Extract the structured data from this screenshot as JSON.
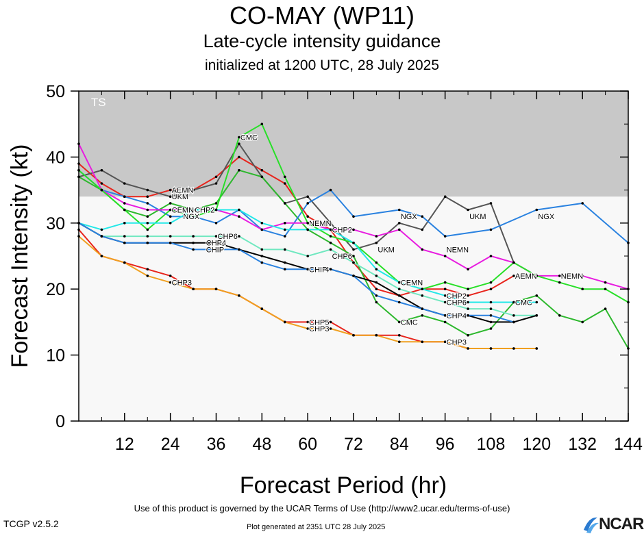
{
  "chart_data": {
    "type": "line",
    "title": "CO-MAY (WP11)",
    "subtitle": "Late-cycle intensity guidance",
    "subtitle2": "initialized at 1200 UTC, 28 July 2025",
    "xlabel": "Forecast Period (hr)",
    "ylabel": "Forecast Intensity (kt)",
    "xlim": [
      0,
      144
    ],
    "ylim": [
      0,
      50
    ],
    "xticks": [
      12,
      24,
      36,
      48,
      60,
      72,
      84,
      96,
      108,
      120,
      132,
      144
    ],
    "yticks": [
      0,
      10,
      20,
      30,
      40,
      50
    ],
    "bands": [
      {
        "label": "TS",
        "from": 34,
        "to": 50,
        "color": "#c8c8c8"
      },
      {
        "label": "",
        "from": 0,
        "to": 34,
        "color": "#f8f8f8"
      }
    ],
    "series": [
      {
        "name": "AEMN",
        "color": "#e8241c",
        "label_at": [
          [
            24,
            35
          ],
          [
            114,
            22
          ]
        ],
        "points": [
          [
            0,
            39
          ],
          [
            6,
            36
          ],
          [
            12,
            34
          ],
          [
            18,
            34
          ],
          [
            24,
            35
          ],
          [
            30,
            35
          ],
          [
            36,
            37
          ],
          [
            42,
            40
          ],
          [
            48,
            38
          ],
          [
            54,
            36
          ],
          [
            60,
            31
          ],
          [
            66,
            29
          ],
          [
            72,
            24
          ],
          [
            78,
            20
          ],
          [
            84,
            19
          ],
          [
            90,
            20
          ],
          [
            96,
            20
          ],
          [
            102,
            19
          ],
          [
            108,
            20
          ],
          [
            114,
            22
          ]
        ]
      },
      {
        "name": "UKM",
        "color": "#555555",
        "label_at": [
          [
            24,
            34
          ],
          [
            78,
            26
          ],
          [
            102,
            31
          ]
        ],
        "points": [
          [
            0,
            37
          ],
          [
            6,
            38
          ],
          [
            12,
            36
          ],
          [
            18,
            35
          ],
          [
            24,
            34
          ],
          [
            30,
            35
          ],
          [
            36,
            36
          ],
          [
            42,
            42
          ],
          [
            48,
            37
          ],
          [
            54,
            33
          ],
          [
            60,
            34
          ],
          [
            66,
            30
          ],
          [
            72,
            26
          ],
          [
            78,
            27
          ],
          [
            84,
            30
          ],
          [
            90,
            29
          ],
          [
            96,
            34
          ],
          [
            102,
            32
          ],
          [
            108,
            33
          ],
          [
            114,
            24
          ]
        ]
      },
      {
        "name": "CMC",
        "color": "#2db82d",
        "label_at": [
          [
            42,
            43
          ],
          [
            84,
            15
          ],
          [
            114,
            18
          ]
        ],
        "points": [
          [
            0,
            37
          ],
          [
            6,
            35
          ],
          [
            12,
            32
          ],
          [
            18,
            31
          ],
          [
            24,
            33
          ],
          [
            30,
            32
          ],
          [
            36,
            33
          ],
          [
            42,
            38
          ],
          [
            48,
            37
          ],
          [
            54,
            33
          ],
          [
            60,
            29
          ],
          [
            66,
            27
          ],
          [
            72,
            25
          ],
          [
            78,
            18
          ],
          [
            84,
            15
          ],
          [
            90,
            16
          ],
          [
            96,
            15
          ],
          [
            102,
            13
          ],
          [
            108,
            14
          ],
          [
            114,
            18
          ],
          [
            120,
            19
          ],
          [
            126,
            16
          ],
          [
            132,
            15
          ],
          [
            138,
            17
          ],
          [
            144,
            11
          ]
        ]
      },
      {
        "name": "NGX",
        "color": "#2a82e0",
        "label_at": [
          [
            27,
            31
          ],
          [
            84,
            31
          ],
          [
            120,
            31
          ]
        ],
        "points": [
          [
            0,
            38
          ],
          [
            6,
            35
          ],
          [
            12,
            34
          ],
          [
            18,
            33
          ],
          [
            24,
            31
          ],
          [
            30,
            31
          ],
          [
            36,
            30
          ],
          [
            42,
            32
          ],
          [
            48,
            29
          ],
          [
            54,
            28
          ],
          [
            60,
            33
          ],
          [
            66,
            35
          ],
          [
            72,
            31
          ],
          [
            84,
            32
          ],
          [
            90,
            31
          ],
          [
            96,
            28
          ],
          [
            108,
            29
          ],
          [
            120,
            32
          ],
          [
            132,
            33
          ],
          [
            144,
            27
          ]
        ]
      },
      {
        "name": "NEMN",
        "color": "#e81ce0",
        "label_at": [
          [
            60,
            30
          ],
          [
            96,
            26
          ],
          [
            126,
            22
          ]
        ],
        "points": [
          [
            0,
            42
          ],
          [
            6,
            35
          ],
          [
            12,
            33
          ],
          [
            18,
            32
          ],
          [
            24,
            32
          ],
          [
            30,
            32
          ],
          [
            36,
            32
          ],
          [
            42,
            31
          ],
          [
            48,
            29
          ],
          [
            54,
            30
          ],
          [
            60,
            30
          ],
          [
            66,
            29
          ],
          [
            72,
            29
          ],
          [
            78,
            28
          ],
          [
            84,
            29
          ],
          [
            90,
            26
          ],
          [
            96,
            25
          ],
          [
            102,
            23
          ],
          [
            108,
            25
          ],
          [
            114,
            24
          ],
          [
            120,
            22
          ],
          [
            126,
            22
          ],
          [
            132,
            22
          ],
          [
            138,
            21
          ],
          [
            144,
            20
          ]
        ]
      },
      {
        "name": "CEMN",
        "color": "#28e028",
        "label_at": [
          [
            24,
            32
          ],
          [
            84,
            21
          ]
        ],
        "points": [
          [
            0,
            38
          ],
          [
            6,
            35
          ],
          [
            12,
            32
          ],
          [
            18,
            29
          ],
          [
            24,
            32
          ],
          [
            30,
            31
          ],
          [
            36,
            32
          ],
          [
            42,
            43
          ],
          [
            48,
            45
          ],
          [
            54,
            37
          ],
          [
            60,
            30
          ],
          [
            66,
            28
          ],
          [
            72,
            27
          ],
          [
            78,
            24
          ],
          [
            84,
            21
          ],
          [
            90,
            20
          ],
          [
            96,
            21
          ],
          [
            102,
            20
          ],
          [
            108,
            21
          ],
          [
            114,
            24
          ],
          [
            120,
            22
          ],
          [
            126,
            21
          ],
          [
            132,
            20
          ],
          [
            138,
            20
          ],
          [
            144,
            18
          ]
        ]
      },
      {
        "name": "CHP2",
        "color": "#22e8e8",
        "label_at": [
          [
            30,
            32
          ],
          [
            66,
            29
          ],
          [
            96,
            19
          ]
        ],
        "points": [
          [
            0,
            30
          ],
          [
            6,
            29
          ],
          [
            12,
            30
          ],
          [
            18,
            30
          ],
          [
            24,
            30
          ],
          [
            30,
            32
          ],
          [
            36,
            32
          ],
          [
            42,
            32
          ],
          [
            48,
            30
          ],
          [
            54,
            29
          ],
          [
            60,
            29
          ],
          [
            66,
            29
          ],
          [
            72,
            27
          ],
          [
            78,
            23
          ],
          [
            84,
            21
          ],
          [
            90,
            20
          ],
          [
            96,
            19
          ],
          [
            102,
            18
          ],
          [
            108,
            18
          ],
          [
            114,
            18
          ],
          [
            120,
            18
          ]
        ]
      },
      {
        "name": "CHP6",
        "color": "#70e8c0",
        "label_at": [
          [
            36,
            28
          ],
          [
            66,
            25
          ],
          [
            96,
            18
          ]
        ],
        "points": [
          [
            0,
            30
          ],
          [
            6,
            28
          ],
          [
            12,
            28
          ],
          [
            18,
            28
          ],
          [
            24,
            28
          ],
          [
            30,
            28
          ],
          [
            36,
            28
          ],
          [
            42,
            28
          ],
          [
            48,
            26
          ],
          [
            54,
            26
          ],
          [
            60,
            25
          ],
          [
            66,
            26
          ],
          [
            72,
            24
          ],
          [
            78,
            22
          ],
          [
            84,
            20
          ],
          [
            90,
            19
          ],
          [
            96,
            18
          ],
          [
            102,
            17
          ],
          [
            108,
            17
          ],
          [
            114,
            16
          ],
          [
            120,
            16
          ]
        ]
      },
      {
        "name": "CHP4",
        "color": "#000000",
        "label_at": [
          [
            33,
            27
          ],
          [
            60,
            23
          ],
          [
            96,
            16
          ]
        ],
        "points": [
          [
            0,
            30
          ],
          [
            6,
            28
          ],
          [
            12,
            27
          ],
          [
            18,
            27
          ],
          [
            24,
            27
          ],
          [
            30,
            27
          ],
          [
            36,
            27
          ],
          [
            42,
            26
          ],
          [
            48,
            25
          ],
          [
            54,
            24
          ],
          [
            60,
            23
          ],
          [
            66,
            23
          ],
          [
            72,
            22
          ],
          [
            78,
            21
          ],
          [
            84,
            19
          ],
          [
            90,
            17
          ],
          [
            96,
            16
          ],
          [
            102,
            16
          ],
          [
            108,
            15
          ],
          [
            114,
            15
          ],
          [
            120,
            16
          ]
        ]
      },
      {
        "name": "CHIP",
        "color": "#2a82e0",
        "label_at": [
          [
            33,
            26
          ],
          [
            60,
            23
          ]
        ],
        "points": [
          [
            0,
            30
          ],
          [
            6,
            28
          ],
          [
            12,
            27
          ],
          [
            18,
            27
          ],
          [
            24,
            27
          ],
          [
            30,
            26
          ],
          [
            36,
            26
          ],
          [
            42,
            26
          ],
          [
            48,
            24
          ],
          [
            54,
            23
          ],
          [
            60,
            23
          ],
          [
            66,
            23
          ],
          [
            72,
            22
          ],
          [
            78,
            19
          ],
          [
            84,
            18
          ],
          [
            90,
            17
          ],
          [
            96,
            16
          ],
          [
            102,
            16
          ],
          [
            108,
            16
          ],
          [
            114,
            15
          ]
        ]
      },
      {
        "name": "CHP5",
        "color": "#e8241c",
        "label_at": [
          [
            24,
            21
          ],
          [
            60,
            15
          ],
          [
            96,
            12
          ]
        ],
        "points": [
          [
            0,
            29
          ],
          [
            6,
            25
          ],
          [
            12,
            24
          ],
          [
            18,
            23
          ],
          [
            24,
            22
          ],
          [
            30,
            20
          ],
          [
            36,
            20
          ],
          [
            42,
            19
          ],
          [
            48,
            17
          ],
          [
            54,
            15
          ],
          [
            60,
            15
          ],
          [
            66,
            15
          ],
          [
            72,
            13
          ],
          [
            78,
            13
          ],
          [
            84,
            13
          ],
          [
            90,
            12
          ],
          [
            96,
            12
          ],
          [
            102,
            11
          ],
          [
            108,
            11
          ],
          [
            114,
            11
          ],
          [
            120,
            11
          ]
        ]
      },
      {
        "name": "CHP3",
        "color": "#f0a020",
        "label_at": [
          [
            24,
            21
          ],
          [
            60,
            14
          ],
          [
            96,
            12
          ]
        ],
        "points": [
          [
            0,
            28
          ],
          [
            6,
            25
          ],
          [
            12,
            24
          ],
          [
            18,
            22
          ],
          [
            24,
            21
          ],
          [
            30,
            20
          ],
          [
            36,
            20
          ],
          [
            42,
            19
          ],
          [
            48,
            17
          ],
          [
            54,
            15
          ],
          [
            60,
            14
          ],
          [
            66,
            14
          ],
          [
            72,
            13
          ],
          [
            78,
            13
          ],
          [
            84,
            12
          ],
          [
            90,
            12
          ],
          [
            96,
            12
          ],
          [
            102,
            11
          ],
          [
            108,
            11
          ],
          [
            114,
            11
          ],
          [
            120,
            11
          ]
        ]
      }
    ]
  },
  "footer": {
    "terms": "Use of this product is governed by the UCAR Terms of Use (http://www2.ucar.edu/terms-of-use)",
    "version": "TCGP v2.5.2",
    "generated": "Plot generated at 2351 UTC   28 July 2025",
    "logo": "NCAR"
  }
}
